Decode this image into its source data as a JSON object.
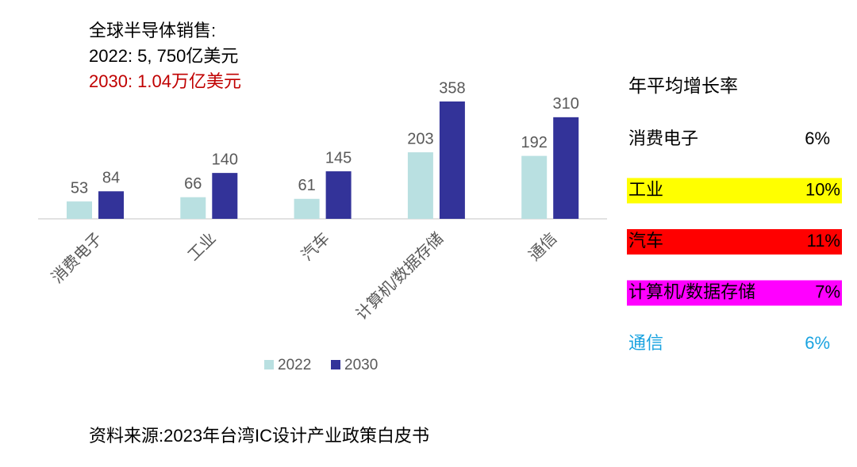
{
  "chart_data": {
    "type": "bar",
    "annotations": [
      "全球半导体销售:",
      "2022: 5, 750亿美元",
      "2030: 1.04万亿美元"
    ],
    "categories": [
      "消费电子",
      "工业",
      "汽车",
      "计算机/数据存储",
      "通信"
    ],
    "series": [
      {
        "name": "2022",
        "color": "#b9e0e1",
        "values": [
          53,
          66,
          61,
          203,
          192
        ]
      },
      {
        "name": "2030",
        "color": "#333399",
        "values": [
          84,
          140,
          145,
          358,
          310
        ]
      }
    ]
  },
  "growth_table": {
    "title": "年平均增长率",
    "rows": [
      {
        "label": "消费电子",
        "rate": "6%",
        "text_color": "#000000",
        "highlight": null
      },
      {
        "label": "工业",
        "rate": "10%",
        "text_color": "#000000",
        "highlight": "#ffff00"
      },
      {
        "label": "汽车",
        "rate": "11%",
        "text_color": "#000000",
        "highlight": "#ff0000"
      },
      {
        "label": "计算机/数据存储",
        "rate": "7%",
        "text_color": "#000000",
        "highlight": "#ff00ff"
      },
      {
        "label": "通信",
        "rate": "6%",
        "text_color": "#1aa3e0",
        "highlight": null
      }
    ]
  },
  "source": "资料来源:2023年台湾IC设计产业政策白皮书"
}
